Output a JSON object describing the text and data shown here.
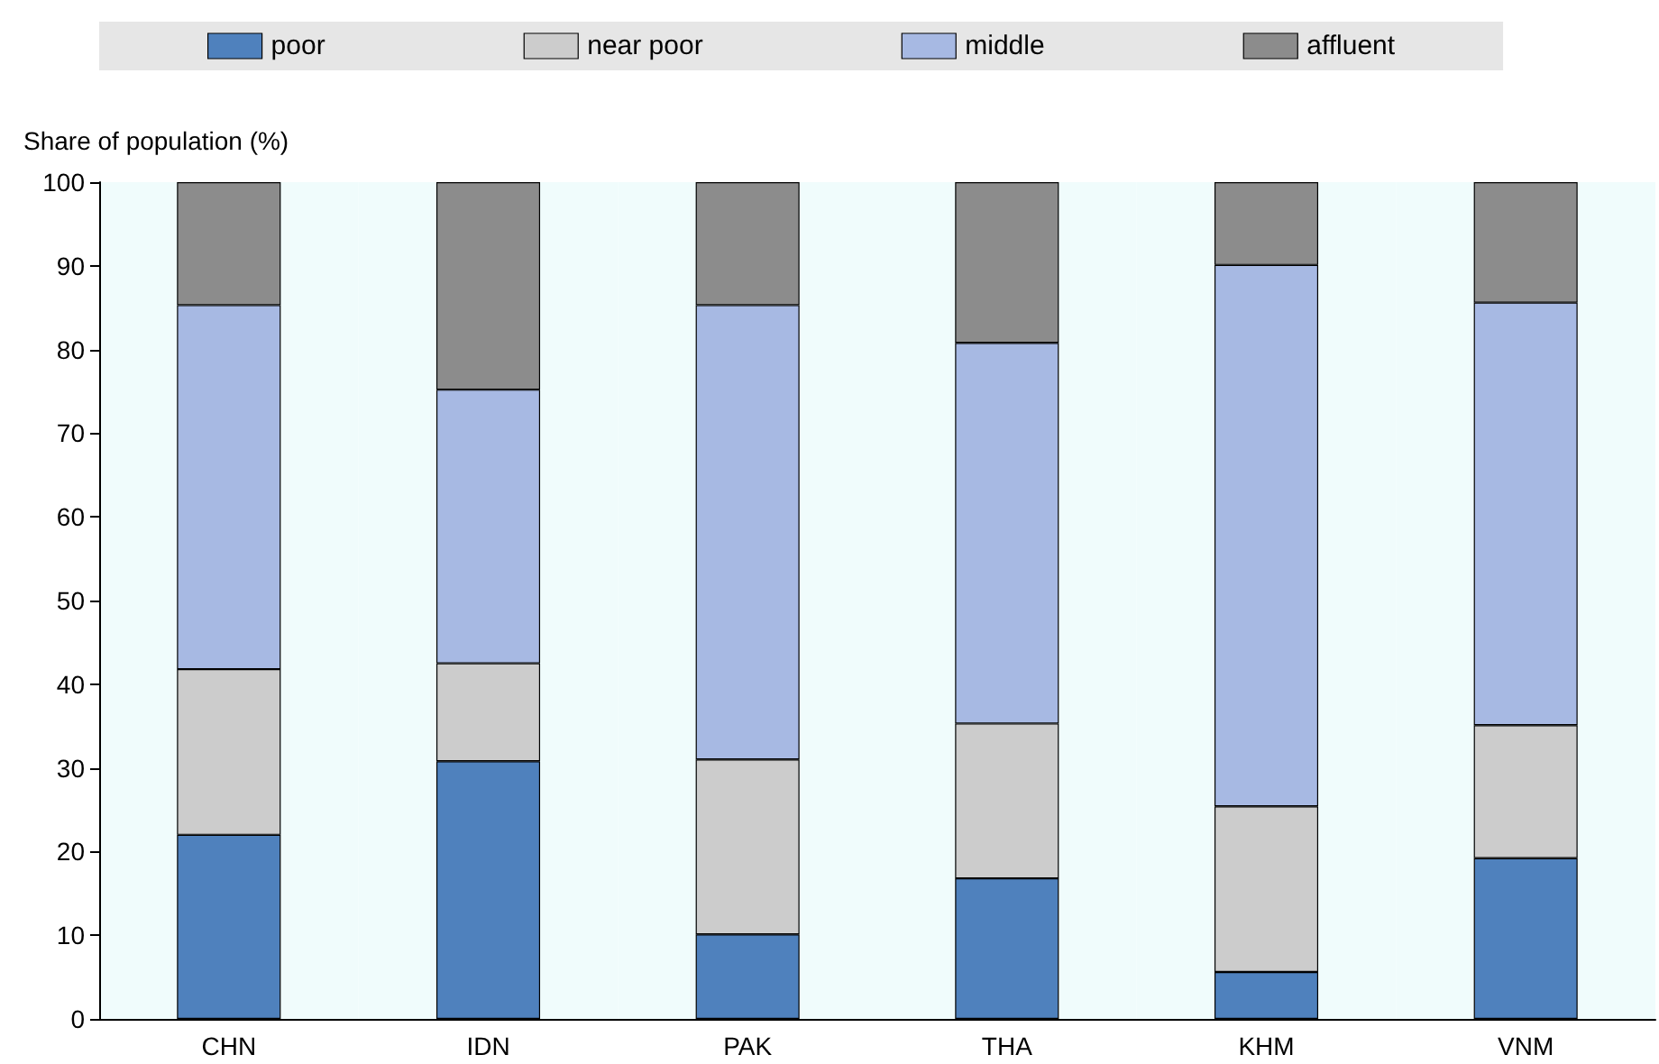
{
  "chart_data": {
    "type": "bar",
    "stacked": true,
    "ylabel": "Share of population (%)",
    "categories": [
      "CHN",
      "IDN",
      "PAK",
      "THA",
      "KHM",
      "VNM"
    ],
    "series": [
      {
        "name": "poor",
        "color": "#4f81bd",
        "values": [
          22.0,
          30.8,
          10.1,
          16.8,
          5.6,
          19.2
        ]
      },
      {
        "name": "near poor",
        "color": "#cccccc",
        "values": [
          19.8,
          11.7,
          20.9,
          18.5,
          19.8,
          15.9
        ]
      },
      {
        "name": "middle",
        "color": "#a7b9e3",
        "values": [
          43.5,
          32.7,
          54.3,
          45.5,
          64.7,
          50.5
        ]
      },
      {
        "name": "affluent",
        "color": "#8c8c8c",
        "values": [
          14.7,
          24.8,
          14.7,
          19.2,
          9.9,
          14.4
        ]
      }
    ],
    "ylim": [
      0,
      100
    ],
    "yticks": [
      0,
      10,
      20,
      30,
      40,
      50,
      60,
      70,
      80,
      90,
      100
    ],
    "grid": false,
    "legend": "top"
  }
}
